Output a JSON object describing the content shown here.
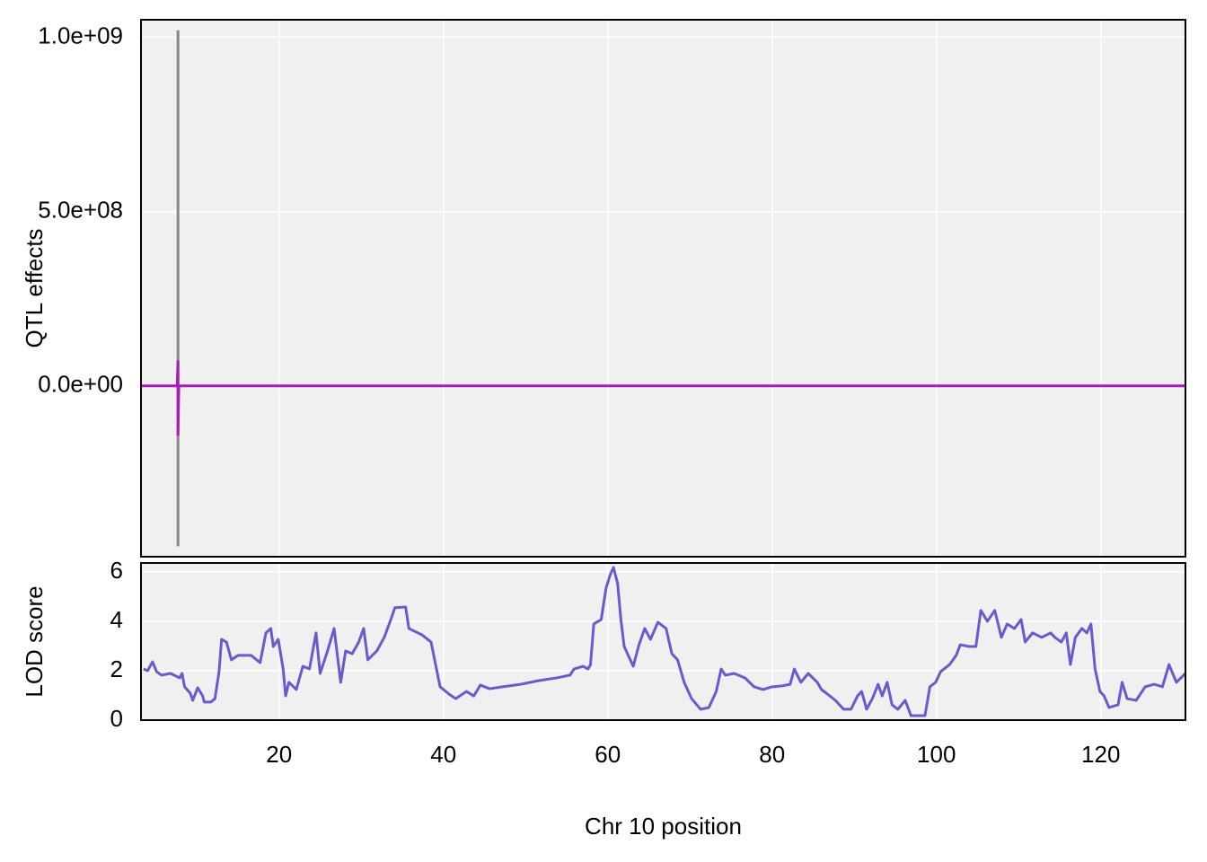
{
  "chart_data": [
    {
      "type": "line",
      "ylabel": "QTL effects",
      "xlim": [
        3.2,
        130.3
      ],
      "ylim": [
        -490000000,
        1050000000
      ],
      "xticks": [
        20,
        40,
        60,
        80,
        100,
        120
      ],
      "yticks": [
        {
          "value": 0,
          "label": "0.0e+00"
        },
        {
          "value": 500000000,
          "label": "5.0e+08"
        },
        {
          "value": 1000000000,
          "label": "1.0e+09"
        }
      ],
      "grid": true,
      "series": [
        {
          "color": "#888888",
          "x": [
            7.7,
            7.7
          ],
          "values": [
            1020000000,
            -460000000
          ]
        },
        {
          "color": "#a51db6",
          "x": [
            3.2,
            7.6,
            7.7,
            7.7,
            7.8,
            130.3
          ],
          "values": [
            0,
            0,
            70000000,
            -140000000,
            0,
            0
          ]
        }
      ]
    },
    {
      "type": "line",
      "ylabel": "LOD score",
      "xlabel": "Chr 10 position",
      "xlim": [
        3.2,
        130.3
      ],
      "ylim": [
        0,
        6.36
      ],
      "xticks": [
        20,
        40,
        60,
        80,
        100,
        120
      ],
      "yticks": [
        0,
        2,
        4,
        6
      ],
      "grid": true,
      "series": [
        {
          "color": "#6a5acd",
          "x": [
            3.5,
            4.0,
            4.6,
            5.1,
            5.7,
            6.8,
            7.9,
            8.2,
            8.5,
            9.2,
            9.5,
            10.1,
            10.7,
            10.9,
            11.7,
            12.2,
            12.7,
            13.0,
            13.6,
            14.2,
            15.0,
            15.7,
            16.6,
            17.7,
            18.4,
            19.0,
            19.3,
            19.9,
            20.5,
            20.8,
            21.2,
            22.1,
            22.9,
            23.7,
            24.5,
            25.0,
            25.9,
            26.7,
            27.5,
            28.1,
            28.9,
            29.7,
            30.3,
            30.8,
            31.9,
            32.8,
            33.6,
            34.1,
            35.4,
            35.8,
            37.4,
            38.5,
            39.0,
            39.6,
            40.7,
            41.5,
            42.8,
            43.7,
            44.5,
            45.6,
            47.2,
            49.4,
            51.6,
            53.8,
            55.4,
            55.9,
            57.0,
            57.6,
            57.9,
            58.3,
            59.2,
            59.8,
            60.3,
            60.7,
            61.2,
            61.6,
            62.0,
            63.1,
            63.8,
            64.5,
            65.2,
            66.1,
            67.1,
            67.8,
            68.5,
            69.3,
            70.2,
            71.3,
            72.3,
            73.2,
            73.8,
            74.3,
            75.4,
            76.7,
            77.8,
            78.9,
            80.0,
            81.1,
            82.2,
            82.7,
            83.5,
            84.4,
            85.5,
            86.0,
            86.6,
            87.7,
            88.7,
            89.6,
            90.4,
            90.9,
            91.5,
            92.2,
            92.9,
            93.4,
            94.0,
            94.6,
            95.3,
            96.2,
            96.9,
            98.6,
            99.2,
            99.9,
            100.5,
            101.6,
            102.4,
            102.9,
            104.0,
            104.8,
            105.4,
            106.2,
            107.1,
            107.9,
            108.6,
            109.5,
            110.3,
            110.8,
            111.7,
            112.8,
            113.9,
            114.4,
            115.2,
            115.8,
            116.3,
            116.9,
            117.7,
            118.3,
            118.8,
            119.3,
            119.9,
            120.4,
            121.0,
            122.1,
            122.6,
            123.2,
            124.3,
            125.4,
            126.5,
            127.5,
            128.3,
            129.2,
            130.3
          ],
          "values": [
            2.07,
            2.0,
            2.36,
            1.96,
            1.82,
            1.89,
            1.71,
            1.89,
            1.35,
            1.09,
            0.8,
            1.31,
            0.98,
            0.73,
            0.73,
            0.87,
            1.96,
            3.27,
            3.16,
            2.44,
            2.62,
            2.62,
            2.62,
            2.33,
            3.53,
            3.71,
            2.98,
            3.27,
            2.07,
            0.98,
            1.53,
            1.24,
            2.18,
            2.07,
            3.53,
            1.89,
            2.8,
            3.71,
            1.53,
            2.8,
            2.69,
            3.16,
            3.71,
            2.44,
            2.8,
            3.35,
            4.07,
            4.55,
            4.58,
            3.71,
            3.45,
            3.16,
            2.33,
            1.35,
            1.05,
            0.87,
            1.16,
            0.98,
            1.42,
            1.27,
            1.35,
            1.45,
            1.6,
            1.71,
            1.82,
            2.07,
            2.18,
            2.07,
            2.25,
            3.89,
            4.07,
            5.35,
            5.89,
            6.18,
            5.53,
            4.07,
            2.98,
            2.18,
            3.05,
            3.71,
            3.27,
            3.96,
            3.71,
            2.69,
            2.44,
            1.53,
            0.87,
            0.44,
            0.51,
            1.16,
            2.07,
            1.82,
            1.89,
            1.71,
            1.35,
            1.24,
            1.35,
            1.38,
            1.45,
            2.07,
            1.53,
            1.89,
            1.53,
            1.24,
            1.09,
            0.8,
            0.44,
            0.44,
            0.98,
            1.16,
            0.44,
            0.87,
            1.45,
            0.98,
            1.53,
            0.62,
            0.44,
            0.8,
            0.18,
            0.18,
            1.35,
            1.53,
            1.96,
            2.25,
            2.62,
            3.05,
            2.98,
            2.98,
            4.44,
            4.0,
            4.44,
            3.35,
            3.89,
            3.71,
            4.07,
            3.16,
            3.53,
            3.35,
            3.53,
            3.35,
            3.16,
            3.53,
            2.25,
            3.35,
            3.71,
            3.53,
            3.89,
            2.07,
            1.16,
            0.98,
            0.51,
            0.62,
            1.53,
            0.87,
            0.8,
            1.35,
            1.45,
            1.35,
            2.25,
            1.53,
            1.89
          ]
        }
      ]
    }
  ]
}
